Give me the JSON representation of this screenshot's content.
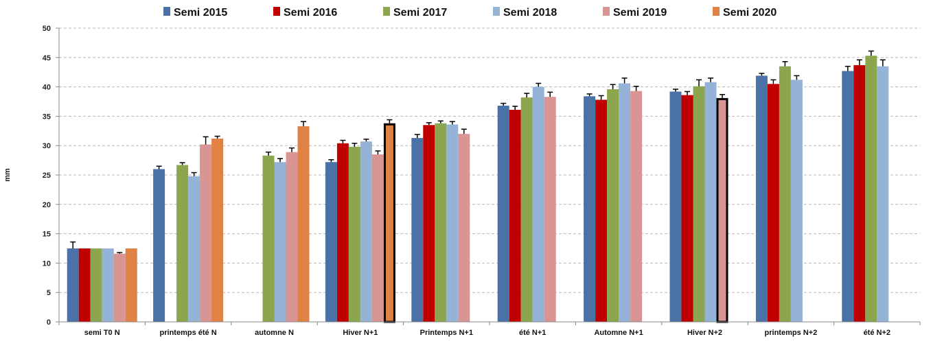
{
  "chart_data": {
    "type": "bar",
    "title": "",
    "xlabel": "",
    "ylabel": "mm",
    "ylim": [
      0,
      50
    ],
    "yticks": [
      0,
      5,
      10,
      15,
      20,
      25,
      30,
      35,
      40,
      45,
      50
    ],
    "grid": true,
    "legend_position": "top",
    "categories": [
      "semi T0 N",
      "printemps été N",
      "automne N",
      "Hiver N+1",
      "Printemps N+1",
      "été N+1",
      "Automne N+1",
      "Hiver N+2",
      "printemps N+2",
      "été N+2"
    ],
    "series": [
      {
        "name": "Semi 2015",
        "color": "#4A72A6",
        "values": [
          12.5,
          26.0,
          null,
          27.2,
          31.3,
          36.8,
          38.4,
          39.2,
          41.9,
          42.7
        ],
        "errors": [
          1.1,
          0.5,
          null,
          0.4,
          0.6,
          0.4,
          0.4,
          0.4,
          0.4,
          0.8
        ]
      },
      {
        "name": "Semi 2016",
        "color": "#C00000",
        "values": [
          12.5,
          null,
          null,
          30.4,
          33.5,
          36.1,
          37.8,
          38.6,
          40.5,
          43.7
        ],
        "errors": [
          0,
          null,
          null,
          0.5,
          0.4,
          0.6,
          0.7,
          0.6,
          0.7,
          0.9
        ]
      },
      {
        "name": "Semi 2017",
        "color": "#8BA64E",
        "values": [
          12.5,
          26.7,
          28.3,
          29.8,
          33.8,
          38.2,
          39.6,
          40.1,
          43.5,
          45.3
        ],
        "errors": [
          0,
          0.4,
          0.6,
          0.6,
          0.4,
          0.7,
          0.8,
          1.1,
          0.8,
          0.8
        ]
      },
      {
        "name": "Semi 2018",
        "color": "#95B3D7",
        "values": [
          12.5,
          24.8,
          27.2,
          30.7,
          33.6,
          40.0,
          40.6,
          40.8,
          41.2,
          43.5
        ],
        "errors": [
          0,
          0.6,
          0.6,
          0.4,
          0.5,
          0.6,
          0.9,
          0.7,
          0.7,
          1.1
        ]
      },
      {
        "name": "Semi 2019",
        "color": "#D99594",
        "values": [
          11.6,
          30.2,
          28.9,
          28.5,
          32.0,
          38.3,
          39.3,
          38.1,
          null,
          null
        ],
        "errors": [
          0.2,
          1.3,
          0.7,
          0.6,
          0.8,
          0.8,
          0.8,
          0.6,
          null,
          null
        ],
        "highlighted": [
          false,
          false,
          false,
          false,
          false,
          false,
          false,
          true,
          false,
          false
        ]
      },
      {
        "name": "Semi 2020",
        "color": "#DF8244",
        "values": [
          12.5,
          31.2,
          33.3,
          33.8,
          null,
          null,
          null,
          null,
          null,
          null
        ],
        "errors": [
          0,
          0.4,
          0.8,
          0.6,
          null,
          null,
          null,
          null,
          null,
          null
        ],
        "highlighted": [
          false,
          false,
          false,
          true,
          false,
          false,
          false,
          false,
          false,
          false
        ]
      }
    ]
  }
}
